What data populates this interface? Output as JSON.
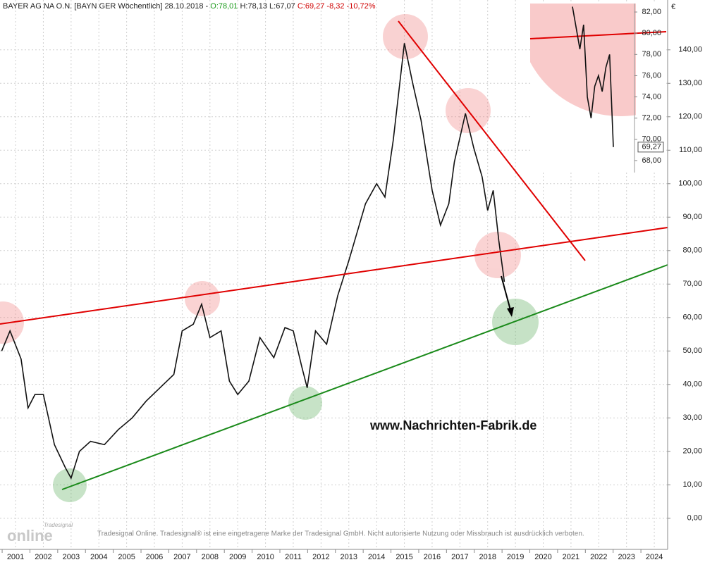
{
  "header": [
    "BAYER AG NA O.N. [BAYN GER  Wöchentlich] 28.10.2018 - ",
    "O:78,01",
    " H:78,13 L:67,07 ",
    "C:69,27 -8,32 -10,72%"
  ],
  "currency": "€",
  "watermark": "www.Nachrichten-Fabrik.de",
  "disclaimer": "Tradesignal Online. Tradesignal® ist eine eingetragene Marke der Tradesignal GmbH. Nicht autorisierte Nutzung oder Missbrauch ist ausdrücklich verboten.",
  "logo": {
    "brand": "Tradesignal",
    "name": "online"
  },
  "chart_data": [
    {
      "type": "line",
      "color": "#111111",
      "grid": true,
      "x": [
        2000.5,
        2000.8,
        2001.2,
        2001.45,
        2001.7,
        2002.0,
        2002.4,
        2002.8,
        2003.0,
        2003.3,
        2003.7,
        2004.2,
        2004.7,
        2005.2,
        2005.7,
        2006.2,
        2006.7,
        2007.0,
        2007.4,
        2007.7,
        2008.0,
        2008.4,
        2008.7,
        2009.0,
        2009.4,
        2009.8,
        2010.3,
        2010.7,
        2011.0,
        2011.3,
        2011.5,
        2011.8,
        2012.2,
        2012.6,
        2013.0,
        2013.3,
        2013.6,
        2014.0,
        2014.3,
        2014.6,
        2015.0,
        2015.3,
        2015.6,
        2016.0,
        2016.3,
        2016.6,
        2016.8,
        2017.2,
        2017.5,
        2017.8,
        2018.0,
        2018.2,
        2018.4,
        2018.6
      ],
      "values": [
        50,
        56,
        47.6,
        33,
        37,
        37,
        22,
        15,
        12,
        20,
        23,
        22,
        26.5,
        30,
        35,
        39,
        43,
        56,
        58,
        64,
        54,
        56,
        41,
        37,
        41,
        54,
        48,
        57,
        56,
        45.5,
        39,
        56,
        52,
        66.5,
        77,
        85.5,
        94,
        100,
        96,
        113,
        142,
        130,
        119,
        98,
        87.6,
        94,
        106.5,
        121,
        110.7,
        102,
        92,
        98,
        83,
        70.7
      ],
      "xlim": [
        2000.44,
        2024.48
      ],
      "xticks": [
        2001,
        2002,
        2003,
        2004,
        2005,
        2006,
        2007,
        2008,
        2009,
        2010,
        2011,
        2012,
        2013,
        2014,
        2015,
        2016,
        2017,
        2018,
        2019,
        2020,
        2021,
        2022,
        2023,
        2024
      ],
      "ylim": [
        -9.3,
        154.9
      ],
      "yticks": [
        {
          "value": 0,
          "label": "0,00"
        },
        {
          "value": 10,
          "label": "10,00"
        },
        {
          "value": 20,
          "label": "20,00"
        },
        {
          "value": 30,
          "label": "30,00"
        },
        {
          "value": 40,
          "label": "40,00"
        },
        {
          "value": 50,
          "label": "50,00"
        },
        {
          "value": 60,
          "label": "60,00"
        },
        {
          "value": 70,
          "label": "70,00"
        },
        {
          "value": 80,
          "label": "80,00"
        },
        {
          "value": 90,
          "label": "90,00"
        },
        {
          "value": 100,
          "label": "100,00"
        },
        {
          "value": 110,
          "label": "110,00"
        },
        {
          "value": 120,
          "label": "120,00"
        },
        {
          "value": 130,
          "label": "130,00"
        },
        {
          "value": 140,
          "label": "140,00"
        }
      ]
    },
    {
      "type": "line",
      "color": "#111111",
      "categories": [
        null,
        null,
        null,
        null,
        null,
        null,
        null,
        null,
        null,
        null,
        null,
        null
      ],
      "values": [
        82.5,
        80.5,
        78.5,
        80.8,
        74,
        72,
        75,
        76,
        74.5,
        76.8,
        78,
        69.27
      ],
      "value_labels": [
        null,
        null,
        null,
        null,
        null,
        null,
        null,
        null,
        null,
        null,
        null,
        "69,27"
      ],
      "ylim": [
        66.87,
        82.8
      ],
      "yticks": [
        {
          "value": 68,
          "label": "68,00"
        },
        {
          "value": 70,
          "label": "70,00"
        },
        {
          "value": 72,
          "label": "72,00"
        },
        {
          "value": 74,
          "label": "74,00"
        },
        {
          "value": 76,
          "label": "76,00"
        },
        {
          "value": 78,
          "label": "78,00"
        },
        {
          "value": 80,
          "label": "80,00"
        },
        {
          "value": 82,
          "label": "82,00"
        }
      ]
    }
  ]
}
